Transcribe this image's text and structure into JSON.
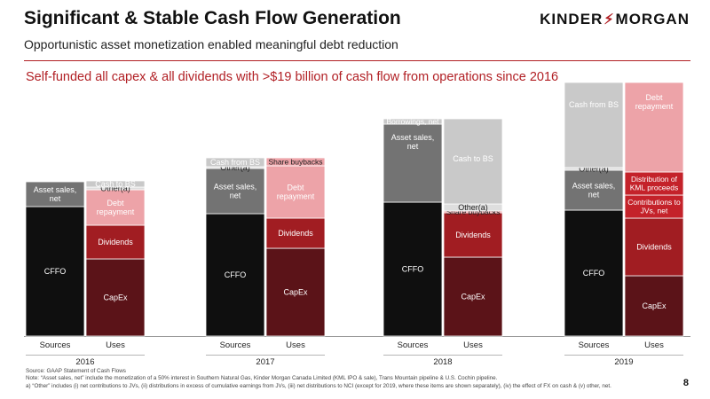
{
  "header": {
    "title": "Significant & Stable Cash Flow Generation",
    "subtitle": "Opportunistic asset monetization enabled meaningful debt reduction",
    "logo_left": "KINDER",
    "logo_right": "MORGAN",
    "headline": "Self-funded all capex & all dividends with >$19 billion of cash flow from operations since 2016"
  },
  "colors": {
    "accent": "#b11f24",
    "CFFO": "#0f0f0f",
    "Asset sales, net": "#737373",
    "Cash from BS": "#c9c9c9",
    "Cash to BS": "#c9c9c9",
    "Borrowings, net": "#c9c9c9",
    "Other(a)": "#dedede",
    "CapEx": "#5b1318",
    "Dividends": "#a11d22",
    "Debt repayment": "#eda3a8",
    "Share buybacks": "#eda3a8",
    "Distribution of KML proceeds": "#c4222a",
    "Contributions to JVs, net": "#c4222a"
  },
  "chart_data": {
    "type": "bar",
    "stacked": true,
    "title": "",
    "ylabel": "",
    "note": "stacked bars; values are relative heights (no value axis shown)",
    "groups": [
      {
        "year": "2016",
        "bars": [
          {
            "label": "Sources",
            "segments": [
              {
                "name": "CFFO",
                "text": "CFFO",
                "value": 146
              },
              {
                "name": "Asset sales, net",
                "text": "Asset sales,\nnet",
                "value": 28
              }
            ]
          },
          {
            "label": "Uses",
            "segments": [
              {
                "name": "CapEx",
                "text": "CapEx",
                "value": 87
              },
              {
                "name": "Dividends",
                "text": "Dividends",
                "value": 38
              },
              {
                "name": "Debt repayment",
                "text": "Debt\nrepayment",
                "value": 40
              },
              {
                "name": "Other(a)",
                "text": "Other(a)",
                "value": 3
              },
              {
                "name": "Cash to BS",
                "text": "Cash to BS",
                "value": 7
              }
            ]
          }
        ]
      },
      {
        "year": "2017",
        "bars": [
          {
            "label": "Sources",
            "segments": [
              {
                "name": "CFFO",
                "text": "CFFO",
                "value": 138
              },
              {
                "name": "Asset sales, net",
                "text": "Asset sales,\nnet",
                "value": 51
              },
              {
                "name": "Other(a)",
                "text": "Other(a)",
                "value": 2
              },
              {
                "name": "Cash from BS",
                "text": "Cash from BS",
                "value": 10
              }
            ]
          },
          {
            "label": "Uses",
            "segments": [
              {
                "name": "CapEx",
                "text": "CapEx",
                "value": 99
              },
              {
                "name": "Dividends",
                "text": "Dividends",
                "value": 34
              },
              {
                "name": "Debt repayment",
                "text": "Debt\nrepayment",
                "value": 59
              },
              {
                "name": "Share buybacks",
                "text": "Share buybacks",
                "value": 9
              }
            ]
          }
        ]
      },
      {
        "year": "2018",
        "bars": [
          {
            "label": "Sources",
            "segments": [
              {
                "name": "CFFO",
                "text": "CFFO",
                "value": 151
              },
              {
                "name": "Asset sales, net",
                "text": "Asset sales,\nnet",
                "value": 88
              },
              {
                "name": "Borrowings, net",
                "text": "Borrowings, net",
                "value": 6
              }
            ]
          },
          {
            "label": "Uses",
            "segments": [
              {
                "name": "CapEx",
                "text": "CapEx",
                "value": 89
              },
              {
                "name": "Dividends",
                "text": "Dividends",
                "value": 50
              },
              {
                "name": "Share buybacks",
                "text": "Share buybacks",
                "value": 2
              },
              {
                "name": "Other(a)",
                "text": "Other(a)",
                "value": 8
              },
              {
                "name": "Cash to BS",
                "text": "Cash to BS",
                "value": 96
              }
            ]
          }
        ]
      },
      {
        "year": "2019",
        "bars": [
          {
            "label": "Sources",
            "segments": [
              {
                "name": "CFFO",
                "text": "CFFO",
                "value": 142
              },
              {
                "name": "Asset sales, net",
                "text": "Asset sales,\nnet",
                "value": 45
              },
              {
                "name": "Other(a)",
                "text": "Other(a)",
                "value": 3
              },
              {
                "name": "Cash from BS",
                "text": "Cash from BS",
                "value": 96
              }
            ]
          },
          {
            "label": "Uses",
            "segments": [
              {
                "name": "CapEx",
                "text": "CapEx",
                "value": 68
              },
              {
                "name": "Dividends",
                "text": "Dividends",
                "value": 65
              },
              {
                "name": "Contributions to JVs, net",
                "text": "Contributions to\nJVs, net",
                "value": 26
              },
              {
                "name": "Distribution of KML proceeds",
                "text": "Distribution of\nKML proceeds",
                "value": 26
              },
              {
                "name": "Debt repayment",
                "text": "Debt\nrepayment",
                "value": 101
              }
            ]
          }
        ]
      }
    ]
  },
  "footnotes": {
    "source": "Source:  GAAP Statement of Cash Flows",
    "note": "Note:  “Asset sales, net” include the monetization of a 50% interest in Southern Natural Gas, Kinder Morgan Canada Limited (KML IPO & sale), Trans Mountain pipeline & U.S. Cochin pipeline.",
    "a": "a)    “Other” includes (i) net contributions to JVs, (ii) distributions in excess of cumulative earnings from JVs, (iii) net distributions to NCI (except for 2019, where these items are shown separately), (iv) the effect of FX on cash & (v) other, net."
  },
  "page_number": "8"
}
